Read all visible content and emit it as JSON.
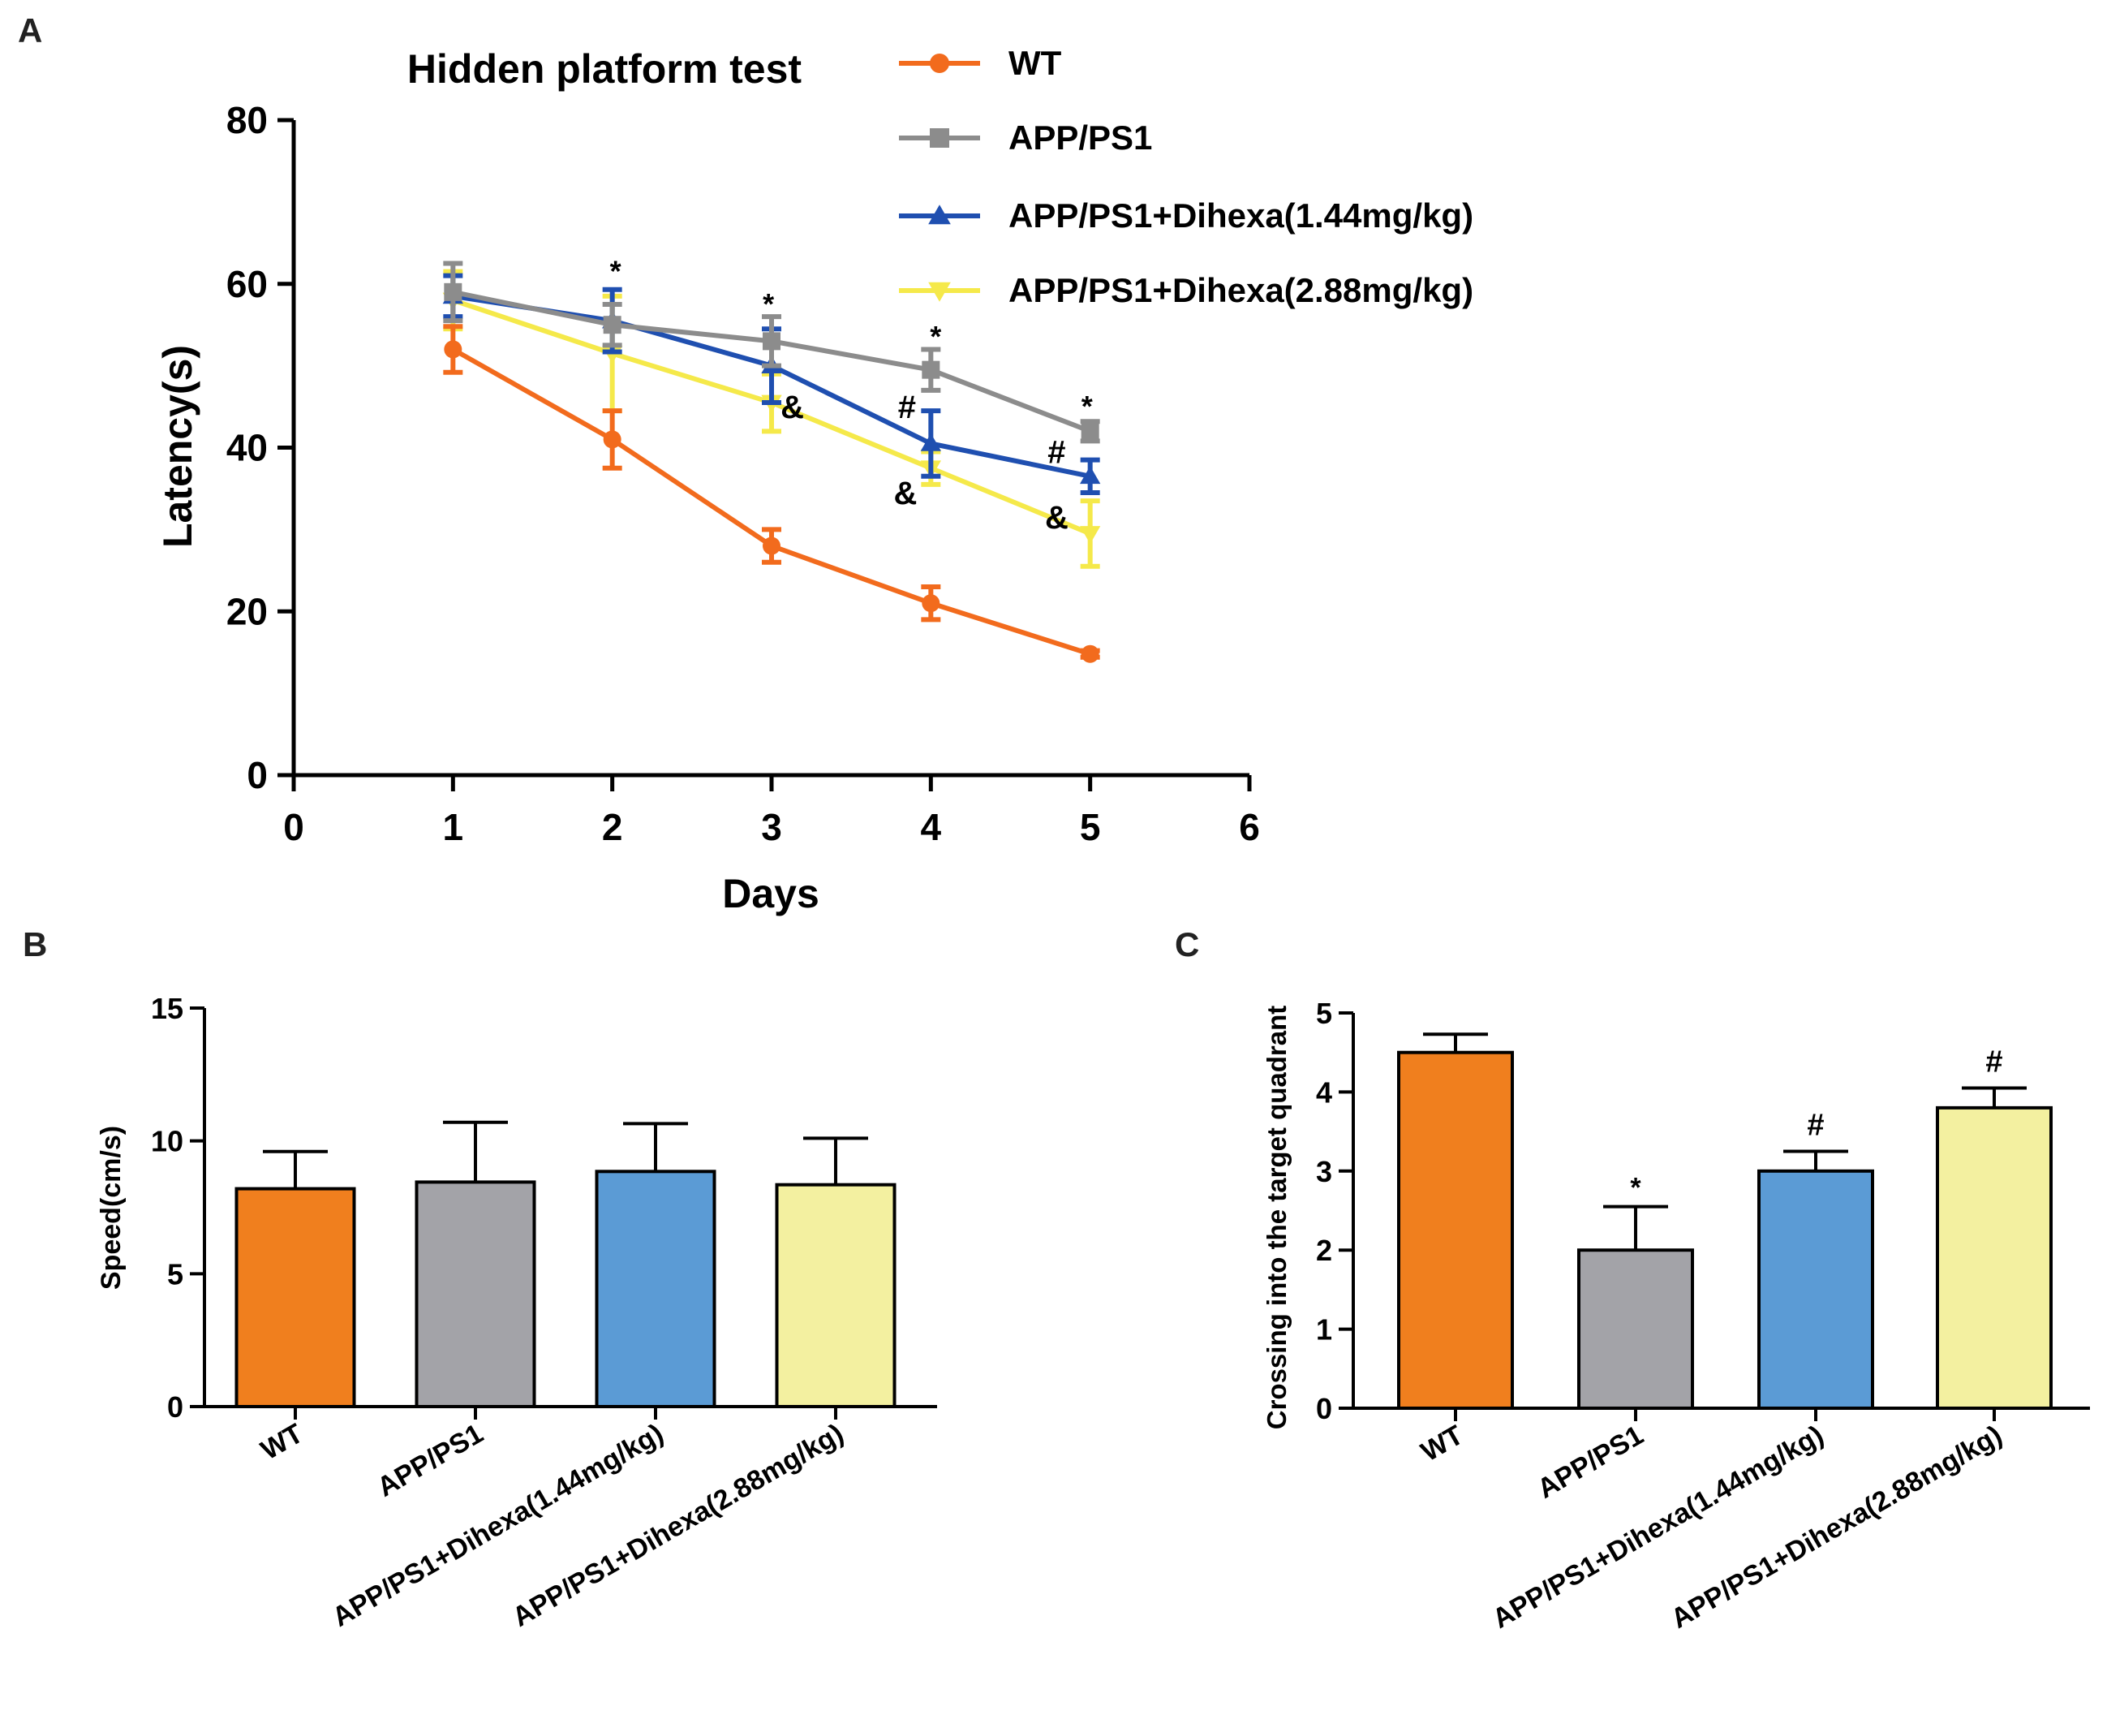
{
  "colors": {
    "wt": "#f26b1d",
    "app": "#8c8c8c",
    "low": "#1f4fb0",
    "high": "#f5e94a",
    "bar_wt": "#f07f1e",
    "bar_app": "#a3a3a8",
    "bar_low": "#5b9bd5",
    "bar_high": "#f3f0a0"
  },
  "chart_data": [
    {
      "panel": "A",
      "type": "line",
      "title": "Hidden platform test",
      "xlabel": "Days",
      "ylabel": "Latency(s)",
      "xlim": [
        0,
        6
      ],
      "ylim": [
        0,
        80
      ],
      "xticks": [
        "0",
        "1",
        "2",
        "3",
        "4",
        "5",
        "6"
      ],
      "yticks": [
        "0",
        "20",
        "40",
        "60",
        "80"
      ],
      "x": [
        1,
        2,
        3,
        4,
        5
      ],
      "series": [
        {
          "name": "WT",
          "color_key": "wt",
          "marker": "circle",
          "values": [
            52,
            41,
            28,
            21,
            14.8
          ],
          "errors": [
            2.8,
            3.5,
            2,
            2,
            0.4
          ]
        },
        {
          "name": "APP/PS1",
          "color_key": "app",
          "marker": "square",
          "values": [
            59,
            55,
            53,
            49.5,
            42
          ],
          "errors": [
            3.5,
            2.5,
            3,
            2.5,
            1.2
          ]
        },
        {
          "name": "APP/PS1+Dihexa(1.44mg/kg)",
          "color_key": "low",
          "marker": "triangle",
          "values": [
            58.5,
            55.5,
            50,
            40.5,
            36.5
          ],
          "errors": [
            2.5,
            3.8,
            4.5,
            4,
            2
          ]
        },
        {
          "name": "APP/PS1+Dihexa(2.88mg/kg)",
          "color_key": "high",
          "marker": "triangle-down",
          "values": [
            58,
            51.5,
            45.5,
            37.5,
            29.5
          ],
          "errors": [
            3.5,
            7,
            3.5,
            2,
            4
          ]
        }
      ],
      "annotations": [
        {
          "text": "*",
          "x": 2.02,
          "y": 62.5
        },
        {
          "text": "*",
          "x": 2.98,
          "y": 58.5
        },
        {
          "text": "*",
          "x": 4.03,
          "y": 54.5
        },
        {
          "text": "*",
          "x": 4.98,
          "y": 46
        },
        {
          "text": "&",
          "x": 3.13,
          "y": 45
        },
        {
          "text": "#",
          "x": 3.85,
          "y": 45
        },
        {
          "text": "&",
          "x": 3.84,
          "y": 34.5
        },
        {
          "text": "#",
          "x": 4.79,
          "y": 39.5
        },
        {
          "text": "&",
          "x": 4.79,
          "y": 31.5
        }
      ]
    },
    {
      "panel": "B",
      "type": "bar",
      "title": "",
      "xlabel": "",
      "ylabel": "Speed(cm/s)",
      "ylim": [
        0,
        15
      ],
      "yticks": [
        "0",
        "5",
        "10",
        "15"
      ],
      "categories": [
        "WT",
        "APP/PS1",
        "APP/PS1+Dihexa(1.44mg/kg)",
        "APP/PS1+Dihexa(2.88mg/kg)"
      ],
      "values": [
        8.2,
        8.45,
        8.85,
        8.35
      ],
      "errors": [
        1.4,
        2.25,
        1.8,
        1.75
      ],
      "color_keys": [
        "bar_wt",
        "bar_app",
        "bar_low",
        "bar_high"
      ],
      "annotations": [
        "",
        "",
        "",
        ""
      ]
    },
    {
      "panel": "C",
      "type": "bar",
      "title": "",
      "xlabel": "",
      "ylabel": "Crossing into the  target quadrant",
      "ylim": [
        0,
        5
      ],
      "yticks": [
        "0",
        "1",
        "2",
        "3",
        "4",
        "5"
      ],
      "categories": [
        "WT",
        "APP/PS1",
        "APP/PS1+Dihexa(1.44mg/kg)",
        "APP/PS1+Dihexa(2.88mg/kg)"
      ],
      "values": [
        4.5,
        2.0,
        3.0,
        3.8
      ],
      "errors": [
        0.23,
        0.55,
        0.25,
        0.25
      ],
      "color_keys": [
        "bar_wt",
        "bar_app",
        "bar_low",
        "bar_high"
      ],
      "annotations": [
        "",
        "*",
        "#",
        "#"
      ]
    }
  ],
  "panel_labels": {
    "a": "A",
    "b": "B",
    "c": "C"
  }
}
